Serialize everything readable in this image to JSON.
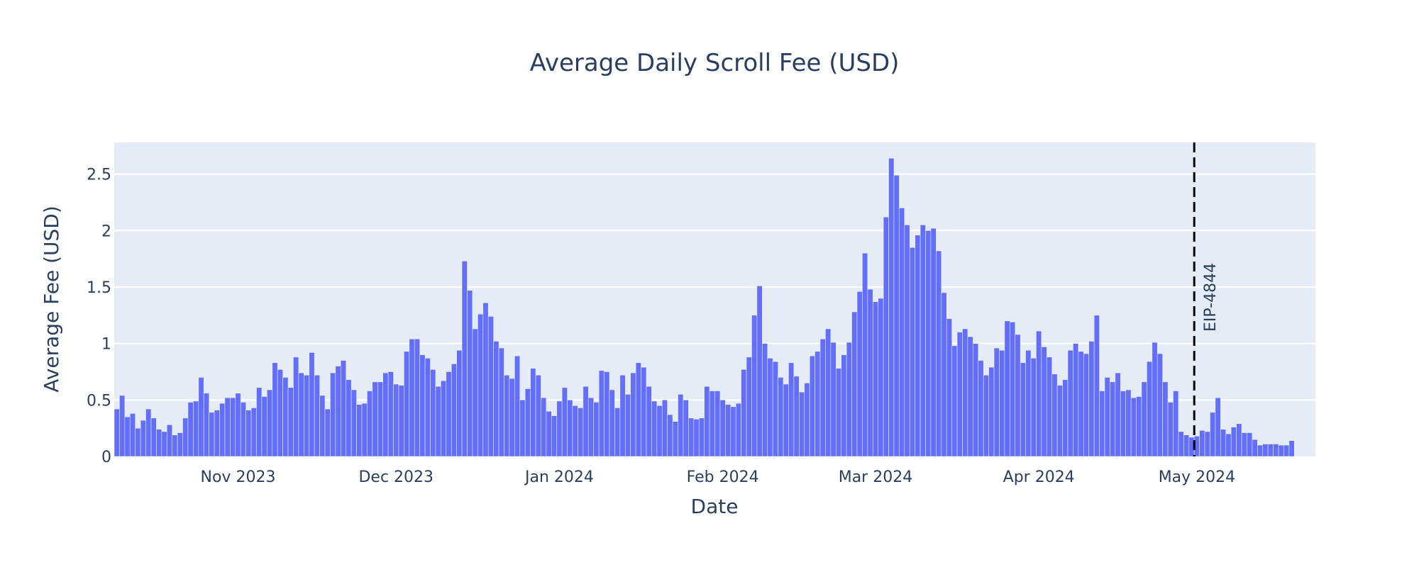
{
  "chart_data": {
    "type": "bar",
    "title": "Average Daily Scroll Fee (USD)",
    "xlabel": "Date",
    "ylabel": "Average Fee (USD)",
    "ylim": [
      0,
      2.78
    ],
    "x_start": "2023-10-09",
    "x_end": "2024-05-23",
    "grid": true,
    "background_color": "#e5ecf6",
    "bar_color": "#636efa",
    "x_ticks": [
      {
        "date": "2023-11-01",
        "label": "Nov 2023"
      },
      {
        "date": "2023-12-01",
        "label": "Dec 2023"
      },
      {
        "date": "2024-01-01",
        "label": "Jan 2024"
      },
      {
        "date": "2024-02-01",
        "label": "Feb 2024"
      },
      {
        "date": "2024-03-01",
        "label": "Mar 2024"
      },
      {
        "date": "2024-04-01",
        "label": "Apr 2024"
      },
      {
        "date": "2024-05-01",
        "label": "May 2024"
      }
    ],
    "y_ticks": [
      {
        "value": 0,
        "label": "0"
      },
      {
        "value": 0.5,
        "label": "0.5"
      },
      {
        "value": 1,
        "label": "1"
      },
      {
        "value": 1.5,
        "label": "1.5"
      },
      {
        "value": 2,
        "label": "2"
      },
      {
        "value": 2.5,
        "label": "2.5"
      }
    ],
    "annotation": {
      "date": "2024-04-30",
      "label": "EIP-4844",
      "style": "dashed",
      "color": "#000000"
    },
    "series": [
      {
        "values": [
          0.42,
          0.54,
          0.35,
          0.38,
          0.25,
          0.32,
          0.42,
          0.34,
          0.24,
          0.22,
          0.28,
          0.19,
          0.21,
          0.34,
          0.48,
          0.49,
          0.7,
          0.56,
          0.39,
          0.41,
          0.47,
          0.52,
          0.52,
          0.56,
          0.48,
          0.41,
          0.43,
          0.61,
          0.53,
          0.59,
          0.83,
          0.77,
          0.7,
          0.61,
          0.88,
          0.74,
          0.72,
          0.92,
          0.72,
          0.54,
          0.42,
          0.74,
          0.8,
          0.85,
          0.68,
          0.59,
          0.46,
          0.47,
          0.58,
          0.66,
          0.66,
          0.74,
          0.75,
          0.64,
          0.63,
          0.93,
          1.04,
          1.04,
          0.9,
          0.87,
          0.77,
          0.62,
          0.67,
          0.75,
          0.82,
          0.94,
          1.73,
          1.47,
          1.13,
          1.26,
          1.36,
          1.24,
          1.02,
          0.96,
          0.72,
          0.69,
          0.89,
          0.5,
          0.6,
          0.78,
          0.72,
          0.52,
          0.4,
          0.36,
          0.49,
          0.61,
          0.5,
          0.45,
          0.43,
          0.62,
          0.52,
          0.48,
          0.76,
          0.75,
          0.59,
          0.43,
          0.72,
          0.55,
          0.74,
          0.83,
          0.79,
          0.62,
          0.49,
          0.45,
          0.5,
          0.37,
          0.31,
          0.55,
          0.5,
          0.34,
          0.33,
          0.34,
          0.62,
          0.58,
          0.58,
          0.5,
          0.46,
          0.44,
          0.47,
          0.77,
          0.88,
          1.25,
          1.51,
          1.0,
          0.87,
          0.84,
          0.7,
          0.64,
          0.83,
          0.71,
          0.57,
          0.65,
          0.89,
          0.93,
          1.04,
          1.13,
          1.01,
          0.78,
          0.9,
          1.01,
          1.28,
          1.46,
          1.8,
          1.48,
          1.37,
          1.4,
          2.12,
          2.64,
          2.49,
          2.2,
          2.05,
          1.85,
          1.96,
          2.05,
          2.0,
          2.02,
          1.82,
          1.45,
          1.22,
          0.98,
          1.1,
          1.13,
          1.06,
          1.0,
          0.85,
          0.72,
          0.79,
          0.96,
          0.94,
          1.2,
          1.19,
          1.08,
          0.83,
          0.94,
          0.87,
          1.11,
          0.97,
          0.88,
          0.73,
          0.63,
          0.68,
          0.94,
          1.0,
          0.93,
          0.91,
          1.02,
          1.25,
          0.58,
          0.7,
          0.66,
          0.74,
          0.58,
          0.59,
          0.52,
          0.53,
          0.66,
          0.84,
          1.01,
          0.91,
          0.66,
          0.48,
          0.58,
          0.22,
          0.19,
          0.17,
          0.18,
          0.23,
          0.22,
          0.39,
          0.52,
          0.24,
          0.2,
          0.26,
          0.29,
          0.21,
          0.21,
          0.15,
          0.1,
          0.11,
          0.11,
          0.11,
          0.1,
          0.1,
          0.14
        ]
      }
    ]
  }
}
